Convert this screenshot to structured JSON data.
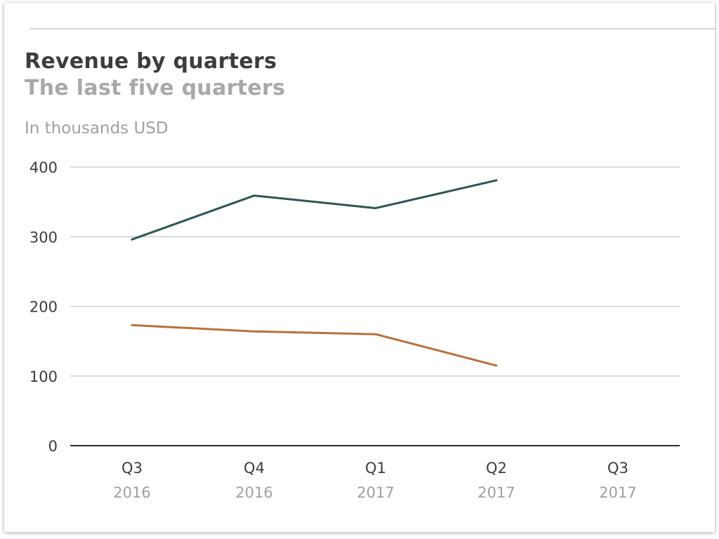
{
  "chart_data": {
    "type": "line",
    "title": "Revenue by quarters",
    "subtitle": "The last five quarters",
    "ylabel": "In thousands USD",
    "xlabel": "",
    "categories": [
      {
        "quarter": "Q3",
        "year": "2016"
      },
      {
        "quarter": "Q4",
        "year": "2016"
      },
      {
        "quarter": "Q1",
        "year": "2017"
      },
      {
        "quarter": "Q2",
        "year": "2017"
      },
      {
        "quarter": "Q3",
        "year": "2017"
      }
    ],
    "yticks": [
      "0",
      "100",
      "200",
      "300",
      "400"
    ],
    "ylim": [
      0,
      400
    ],
    "grid": true,
    "legend": "none",
    "series": [
      {
        "color": "#2e5552",
        "values": [
          296,
          359,
          341,
          381,
          null
        ]
      },
      {
        "color": "#b8703e",
        "values": [
          173,
          164,
          160,
          115,
          null
        ]
      }
    ]
  }
}
